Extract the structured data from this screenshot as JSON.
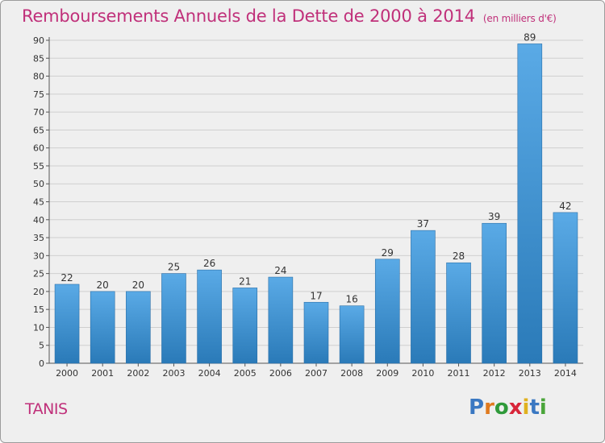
{
  "title": "Remboursements Annuels de la Dette de 2000 à 2014",
  "unit_note": "(en milliers d'€)",
  "commune": "TANIS",
  "logo": {
    "letters": [
      "P",
      "r",
      "o",
      "x",
      "i",
      "t",
      "i"
    ],
    "colors": [
      "#3a78c2",
      "#e07a1f",
      "#2f9a3a",
      "#d8263a",
      "#e0b11f",
      "#3a78c2",
      "#4aa53a"
    ]
  },
  "colors": {
    "bar_light": "#5aaae6",
    "bar_dark": "#2a7ab8",
    "title": "#c0307a",
    "grid": "#cfcfcf"
  },
  "chart_data": {
    "type": "bar",
    "categories": [
      "2000",
      "2001",
      "2002",
      "2003",
      "2004",
      "2005",
      "2006",
      "2007",
      "2008",
      "2009",
      "2010",
      "2011",
      "2012",
      "2013",
      "2014"
    ],
    "values": [
      22,
      20,
      20,
      25,
      26,
      21,
      24,
      17,
      16,
      29,
      37,
      28,
      39,
      89,
      42
    ],
    "ylim": [
      0,
      90
    ],
    "yticks": [
      0,
      5,
      10,
      15,
      20,
      25,
      30,
      35,
      40,
      45,
      50,
      55,
      60,
      65,
      70,
      75,
      80,
      85,
      90
    ],
    "grid": true,
    "data_labels": true
  }
}
